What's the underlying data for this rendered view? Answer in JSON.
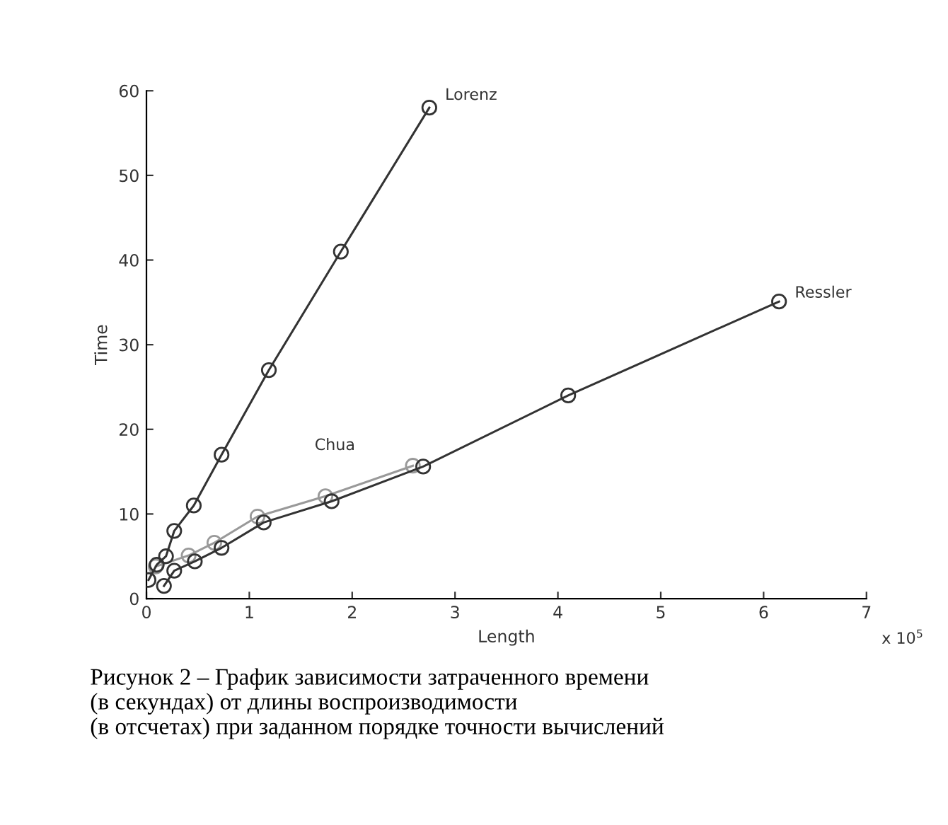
{
  "chart_data": {
    "type": "line",
    "xlabel": "Length",
    "ylabel": "Time",
    "xlim": [
      0,
      7
    ],
    "xticks": [
      0,
      1,
      2,
      3,
      4,
      5,
      6,
      7
    ],
    "ylim": [
      0,
      60
    ],
    "yticks": [
      0,
      10,
      20,
      30,
      40,
      50,
      60
    ],
    "grid": false,
    "legend": false,
    "marker": "circle",
    "line_style": "solid",
    "series": [
      {
        "name": "Lorenz",
        "color": "#333333",
        "x": [
          0.02,
          0.1,
          0.19,
          0.27,
          0.46,
          0.73,
          1.19,
          1.89,
          2.75
        ],
        "values": [
          2.2,
          4.0,
          5,
          8,
          11,
          17,
          27,
          41,
          58
        ]
      },
      {
        "name": "Ressler",
        "color": "#333333",
        "x": [
          0.17,
          0.27,
          0.47,
          0.73,
          1.14,
          1.8,
          2.69,
          4.1,
          6.15
        ],
        "values": [
          1.5,
          3.3,
          4.4,
          6.0,
          9.0,
          11.5,
          15.6,
          24.0,
          35.1
        ]
      },
      {
        "name": "Chua",
        "color": "#999999",
        "x": [
          0.09,
          0.41,
          0.66,
          1.08,
          1.74,
          2.59
        ],
        "values": [
          3.8,
          5.1,
          6.6,
          9.7,
          12.1,
          15.7
        ]
      }
    ],
    "annotations": [
      "x 10$^{5}$",
      "Рисунок 2 – График зависимости затраченного времени\n(в секундах) от длины воспроизводимости\n(в отсчетах) при заданном порядке точности вычислений"
    ]
  }
}
